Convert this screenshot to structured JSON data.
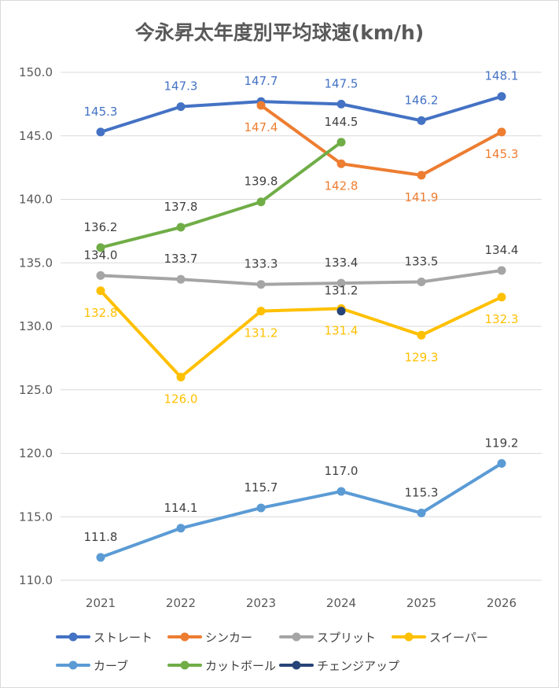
{
  "chart_data": {
    "type": "line",
    "title": "今永昇太年度別平均球速(km/h)",
    "categories": [
      "2021",
      "2022",
      "2023",
      "2024",
      "2025",
      "2026"
    ],
    "ylim": [
      110.0,
      150.0
    ],
    "ytick_step": 5,
    "ytick_labels": [
      "110.0",
      "115.0",
      "120.0",
      "125.0",
      "130.0",
      "135.0",
      "140.0",
      "145.0",
      "150.0"
    ],
    "grid": true,
    "legend_position": "bottom",
    "series": [
      {
        "name": "ストレート",
        "color": "#4472C4",
        "values": [
          145.3,
          147.3,
          147.7,
          147.5,
          146.2,
          148.1
        ],
        "labels": [
          "145.3",
          "147.3",
          "147.7",
          "147.5",
          "146.2",
          "148.1"
        ],
        "label_pos": [
          "above",
          "above",
          "above",
          "above",
          "above",
          "above"
        ],
        "label_color": "#4472C4"
      },
      {
        "name": "シンカー",
        "color": "#ED7D31",
        "values": [
          null,
          null,
          147.4,
          142.8,
          141.9,
          145.3
        ],
        "labels": [
          null,
          null,
          "147.4",
          "142.8",
          "141.9",
          "145.3"
        ],
        "label_pos": [
          null,
          null,
          "below",
          "below",
          "below",
          "below"
        ],
        "label_color": "#ED7D31"
      },
      {
        "name": "スプリット",
        "color": "#A5A5A5",
        "values": [
          134.0,
          133.7,
          133.3,
          133.4,
          133.5,
          134.4
        ],
        "labels": [
          "134.0",
          "133.7",
          "133.3",
          "133.4",
          "133.5",
          "134.4"
        ],
        "label_pos": [
          "above",
          "above",
          "above",
          "above",
          "above",
          "above"
        ],
        "label_color": "#404040"
      },
      {
        "name": "スイーパー",
        "color": "#FFC000",
        "values": [
          132.8,
          126.0,
          131.2,
          131.4,
          129.3,
          132.3
        ],
        "labels": [
          "132.8",
          "126.0",
          "131.2",
          "131.4",
          "129.3",
          "132.3"
        ],
        "label_pos": [
          "below",
          "below",
          "below",
          "below",
          "below",
          "below"
        ],
        "label_color": "#FFC000"
      },
      {
        "name": "カーブ",
        "color": "#5B9BD5",
        "values": [
          111.8,
          114.1,
          115.7,
          117.0,
          115.3,
          119.2
        ],
        "labels": [
          "111.8",
          "114.1",
          "115.7",
          "117.0",
          "115.3",
          "119.2"
        ],
        "label_pos": [
          "above",
          "above",
          "above",
          "above",
          "above",
          "above"
        ],
        "label_color": "#404040"
      },
      {
        "name": "カットボール",
        "color": "#70AD47",
        "values": [
          136.2,
          137.8,
          139.8,
          144.5,
          null,
          null
        ],
        "labels": [
          "136.2",
          "137.8",
          "139.8",
          "144.5",
          null,
          null
        ],
        "label_pos": [
          "above",
          "above",
          "above",
          "above",
          null,
          null
        ],
        "label_color": "#404040"
      },
      {
        "name": "チェンジアップ",
        "color": "#264478",
        "values": [
          null,
          null,
          null,
          131.2,
          null,
          null
        ],
        "labels": [
          null,
          null,
          null,
          "131.2",
          null,
          null
        ],
        "label_pos": [
          null,
          null,
          null,
          "above",
          null,
          null
        ],
        "label_color": "#404040"
      }
    ]
  }
}
